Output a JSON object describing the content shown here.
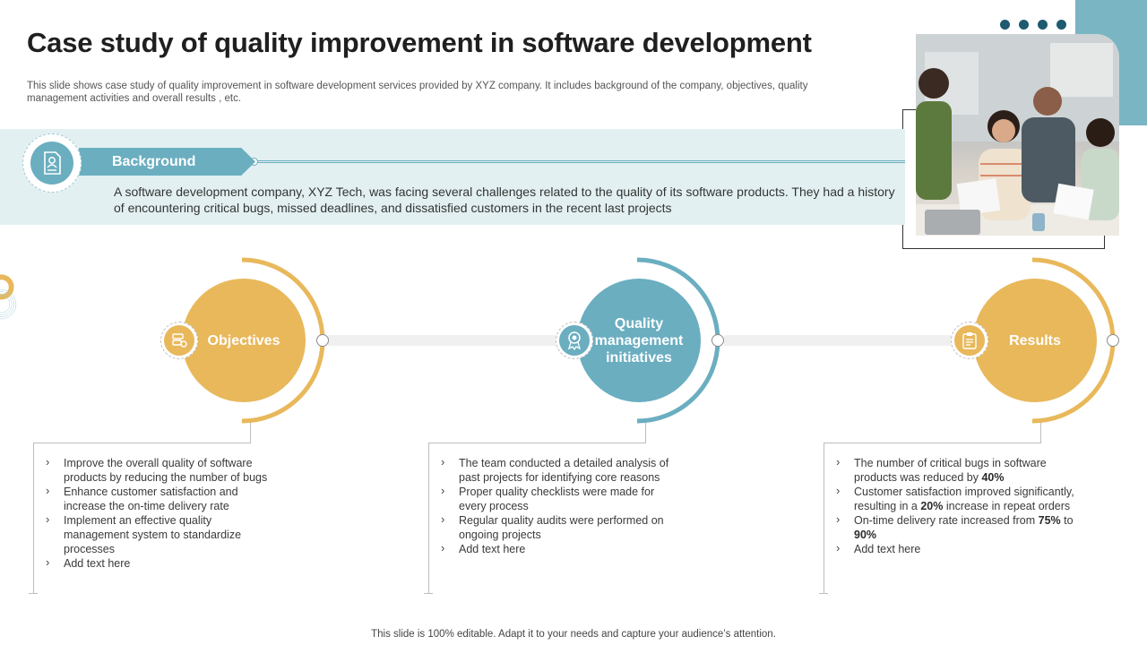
{
  "title": "Case study of quality improvement in software development",
  "subtitle": "This slide shows case study of quality improvement in software development services provided by XYZ company. It includes background of the company, objectives, quality management activities and overall results , etc.",
  "background": {
    "label": "Background",
    "text": "A software development company, XYZ Tech, was facing several challenges related to the quality of its software products. They had a history of encountering critical bugs, missed deadlines, and dissatisfied customers in the recent last projects"
  },
  "stages": [
    {
      "label": "Objectives",
      "color": "#e8b85b",
      "icon": "server-settings-icon",
      "items": [
        [
          "Improve the overall quality of software products by reducing the number of bugs"
        ],
        [
          "Enhance customer satisfaction and increase the on-time delivery rate"
        ],
        [
          "Implement an effective quality management system to standardize processes"
        ],
        [
          "Add text here"
        ]
      ]
    },
    {
      "label": "Quality management initiatives",
      "color": "#6aaec0",
      "icon": "award-badge-icon",
      "items": [
        [
          "The team conducted a detailed analysis of past projects for identifying core reasons"
        ],
        [
          "Proper quality checklists were made for every process"
        ],
        [
          "Regular quality audits were performed on ongoing projects"
        ],
        [
          "Add text here"
        ]
      ]
    },
    {
      "label": "Results",
      "color": "#e8b85b",
      "icon": "clipboard-report-icon",
      "items": [
        [
          "The number of critical bugs in software products was reduced by ",
          "40%"
        ],
        [
          "Customer satisfaction improved significantly, resulting in a ",
          "20%",
          "  increase in repeat orders"
        ],
        [
          "On-time delivery rate increased from ",
          "75%",
          " to ",
          "90%"
        ],
        [
          "Add text here"
        ]
      ]
    }
  ],
  "footer": "This slide is 100% editable. Adapt it to your needs and capture your audience’s attention.",
  "colors": {
    "gold": "#e8b85b",
    "teal": "#6aaec0",
    "dark_teal": "#1e5a70",
    "band": "#e3f0f2"
  },
  "photo": {
    "icon": "team-meeting-photo"
  }
}
